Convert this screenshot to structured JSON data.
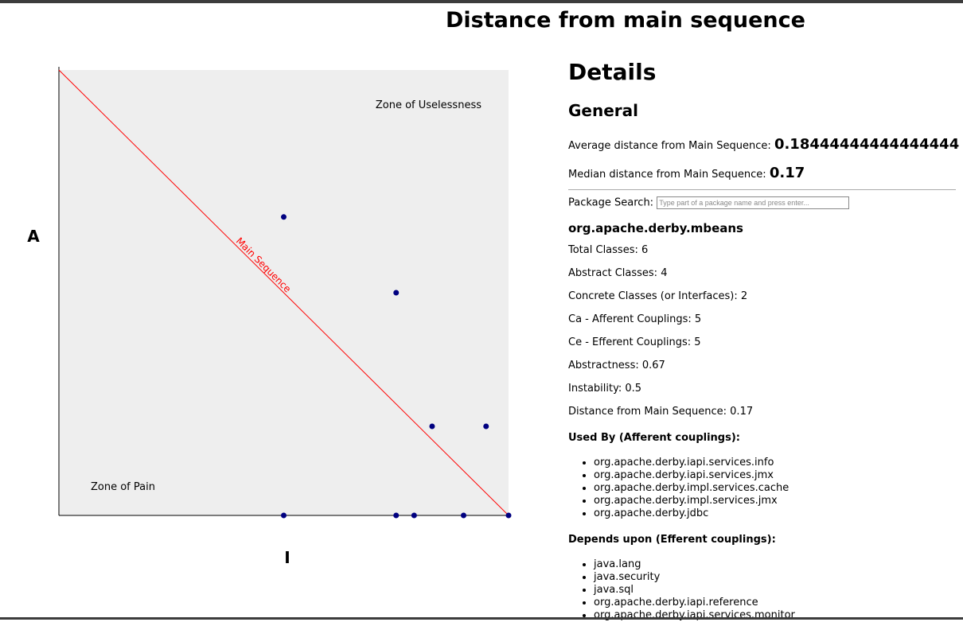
{
  "page_title": "Distance from main sequence",
  "chart_data": {
    "type": "scatter",
    "xlabel": "I",
    "ylabel": "A",
    "xlim": [
      0,
      1
    ],
    "ylim": [
      0,
      1
    ],
    "grid": false,
    "annotations": {
      "zone_useless": "Zone of Uselessness",
      "zone_pain": "Zone of Pain",
      "main_sequence": "Main Sequence"
    },
    "main_sequence_line": {
      "from": [
        0,
        1
      ],
      "to": [
        1,
        0
      ]
    },
    "colors": {
      "point": "#000080",
      "line": "#ff0000",
      "plot_bg": "#eeeeee"
    },
    "points": [
      {
        "x": 0.5,
        "y": 0.67
      },
      {
        "x": 0.75,
        "y": 0.5
      },
      {
        "x": 0.83,
        "y": 0.2
      },
      {
        "x": 0.95,
        "y": 0.2
      },
      {
        "x": 0.5,
        "y": 0.0
      },
      {
        "x": 0.75,
        "y": 0.0
      },
      {
        "x": 0.79,
        "y": 0.0
      },
      {
        "x": 0.9,
        "y": 0.0
      },
      {
        "x": 1.0,
        "y": 0.0
      }
    ]
  },
  "details": {
    "heading": "Details",
    "general_heading": "General",
    "avg_label": "Average distance from Main Sequence:",
    "avg_value": "0.18444444444444444",
    "median_label": "Median distance from Main Sequence:",
    "median_value": "0.17",
    "search_label": "Package Search:",
    "search_placeholder": "Type part of a package name and press enter...",
    "package_name": "org.apache.derby.mbeans",
    "metrics": [
      "Total Classes: 6",
      "Abstract Classes: 4",
      "Concrete Classes (or Interfaces): 2",
      "Ca - Afferent Couplings: 5",
      "Ce - Efferent Couplings: 5",
      "Abstractness: 0.67",
      "Instability: 0.5",
      "Distance from Main Sequence: 0.17"
    ],
    "used_by_heading": "Used By (Afferent couplings):",
    "used_by": [
      "org.apache.derby.iapi.services.info",
      "org.apache.derby.iapi.services.jmx",
      "org.apache.derby.impl.services.cache",
      "org.apache.derby.impl.services.jmx",
      "org.apache.derby.jdbc"
    ],
    "depends_heading": "Depends upon (Efferent couplings):",
    "depends": [
      "java.lang",
      "java.security",
      "java.sql",
      "org.apache.derby.iapi.reference",
      "org.apache.derby.iapi.services.monitor"
    ]
  }
}
